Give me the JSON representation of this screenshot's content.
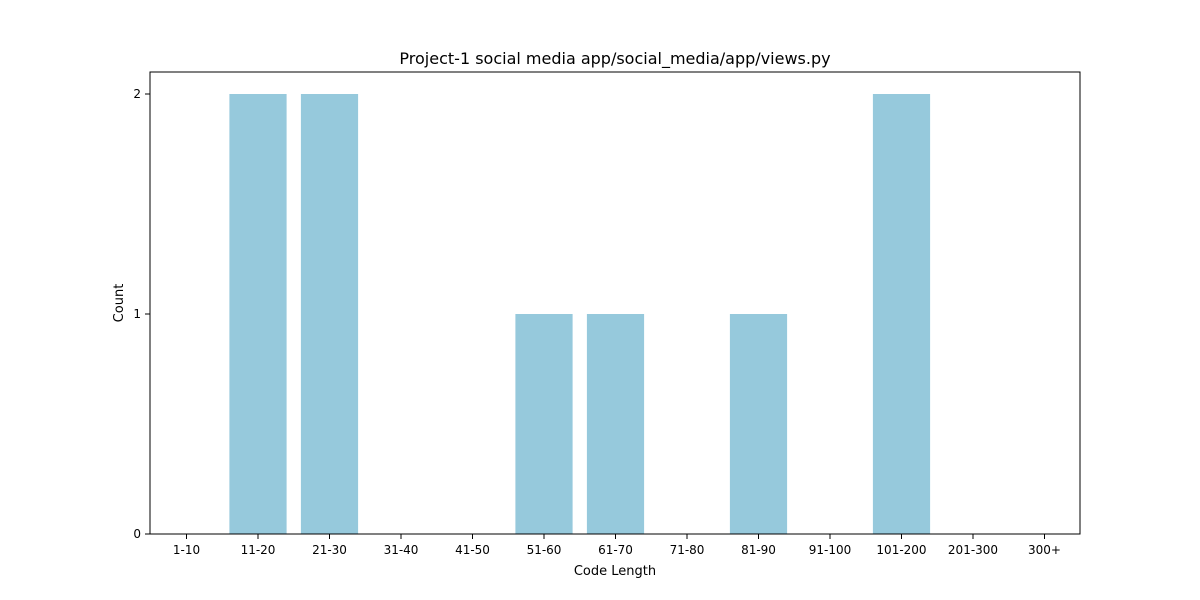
{
  "chart_data": {
    "type": "bar",
    "title": "Project-1 social media app/social_media/app/views.py",
    "xlabel": "Code Length",
    "ylabel": "Count",
    "categories": [
      "1-10",
      "11-20",
      "21-30",
      "31-40",
      "41-50",
      "51-60",
      "61-70",
      "71-80",
      "81-90",
      "91-100",
      "101-200",
      "201-300",
      "300+"
    ],
    "values": [
      0,
      2,
      2,
      0,
      0,
      1,
      1,
      0,
      1,
      0,
      2,
      0,
      0
    ],
    "yticks": [
      "0",
      "1",
      "2"
    ],
    "ylim": [
      0,
      2.1
    ],
    "grid": false,
    "bar_color": "#96c9dc"
  }
}
